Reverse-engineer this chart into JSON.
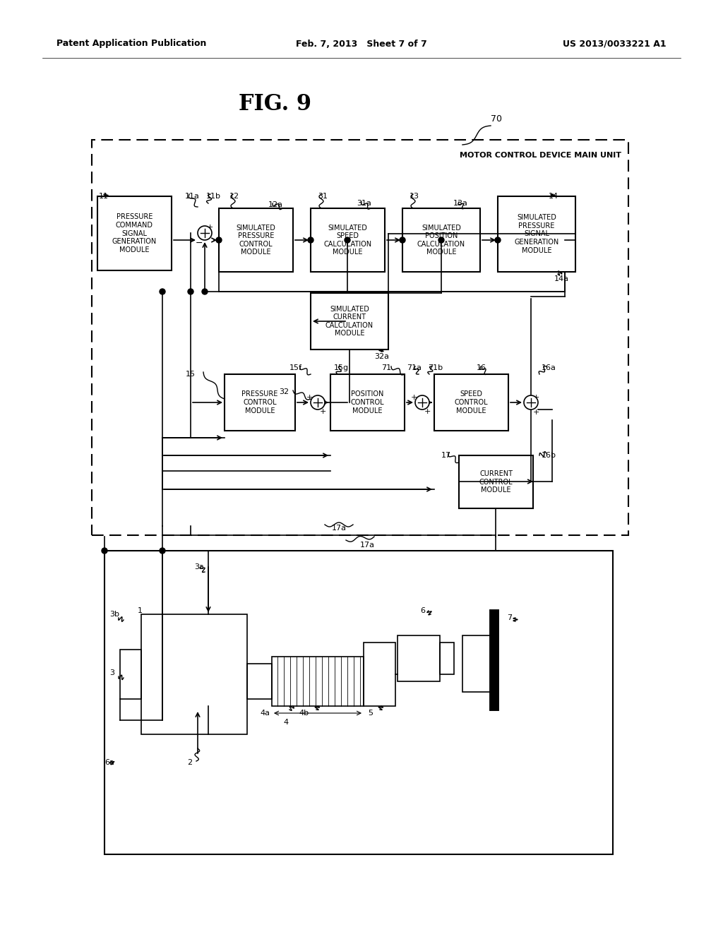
{
  "title": "FIG. 9",
  "header_left": "Patent Application Publication",
  "header_center": "Feb. 7, 2013   Sheet 7 of 7",
  "header_right": "US 2013/0033221 A1",
  "bg_color": "#ffffff"
}
